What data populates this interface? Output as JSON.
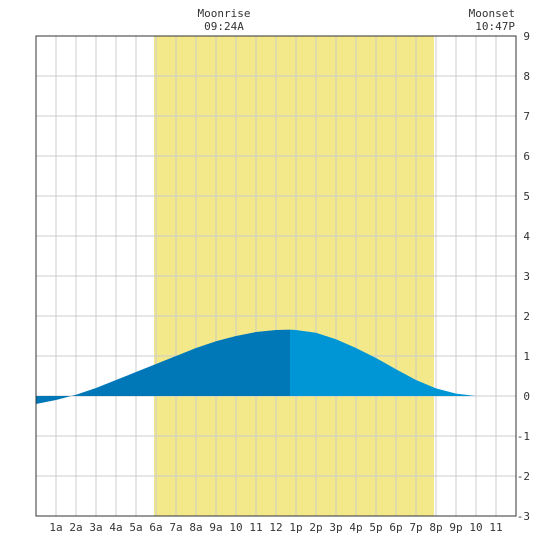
{
  "annotations": {
    "moonrise": {
      "label": "Moonrise",
      "time": "09:24A",
      "hour": 9.4
    },
    "moonset": {
      "label": "Moonset",
      "time": "10:47P",
      "hour": 22.78
    }
  },
  "colors": {
    "daylight": "#f4e98a",
    "tide_rising": "#0077b6",
    "tide_falling": "#0096d6",
    "grid": "#cccccc",
    "border": "#333333"
  },
  "chart_data": {
    "type": "area",
    "x_unit": "hour of day",
    "xlim": [
      0,
      24
    ],
    "ylim": [
      -3,
      9
    ],
    "grid": true,
    "x_ticks": [
      {
        "hour": 1,
        "label": "1a"
      },
      {
        "hour": 2,
        "label": "2a"
      },
      {
        "hour": 3,
        "label": "3a"
      },
      {
        "hour": 4,
        "label": "4a"
      },
      {
        "hour": 5,
        "label": "5a"
      },
      {
        "hour": 6,
        "label": "6a"
      },
      {
        "hour": 7,
        "label": "7a"
      },
      {
        "hour": 8,
        "label": "8a"
      },
      {
        "hour": 9,
        "label": "9a"
      },
      {
        "hour": 10,
        "label": "10"
      },
      {
        "hour": 11,
        "label": "11"
      },
      {
        "hour": 12,
        "label": "12"
      },
      {
        "hour": 13,
        "label": "1p"
      },
      {
        "hour": 14,
        "label": "2p"
      },
      {
        "hour": 15,
        "label": "3p"
      },
      {
        "hour": 16,
        "label": "4p"
      },
      {
        "hour": 17,
        "label": "5p"
      },
      {
        "hour": 18,
        "label": "6p"
      },
      {
        "hour": 19,
        "label": "7p"
      },
      {
        "hour": 20,
        "label": "8p"
      },
      {
        "hour": 21,
        "label": "9p"
      },
      {
        "hour": 22,
        "label": "10"
      },
      {
        "hour": 23,
        "label": "11"
      }
    ],
    "y_ticks": [
      -3,
      -2,
      -1,
      0,
      1,
      2,
      3,
      4,
      5,
      6,
      7,
      8,
      9
    ],
    "daylight": {
      "start": 5.9,
      "end": 19.9
    },
    "peak_hour": 12.7,
    "series": [
      {
        "x": [
          0,
          1,
          2,
          3,
          4,
          5,
          6,
          7,
          8,
          9,
          10,
          11,
          12,
          12.7,
          13,
          14,
          15,
          16,
          17,
          18,
          19,
          20,
          21,
          22,
          23,
          24
        ],
        "y": [
          -0.2,
          -0.1,
          0.03,
          0.2,
          0.4,
          0.6,
          0.8,
          1.0,
          1.2,
          1.37,
          1.5,
          1.6,
          1.65,
          1.66,
          1.65,
          1.58,
          1.42,
          1.2,
          0.95,
          0.67,
          0.4,
          0.19,
          0.06,
          0.0,
          0.0,
          0.0
        ]
      }
    ]
  }
}
